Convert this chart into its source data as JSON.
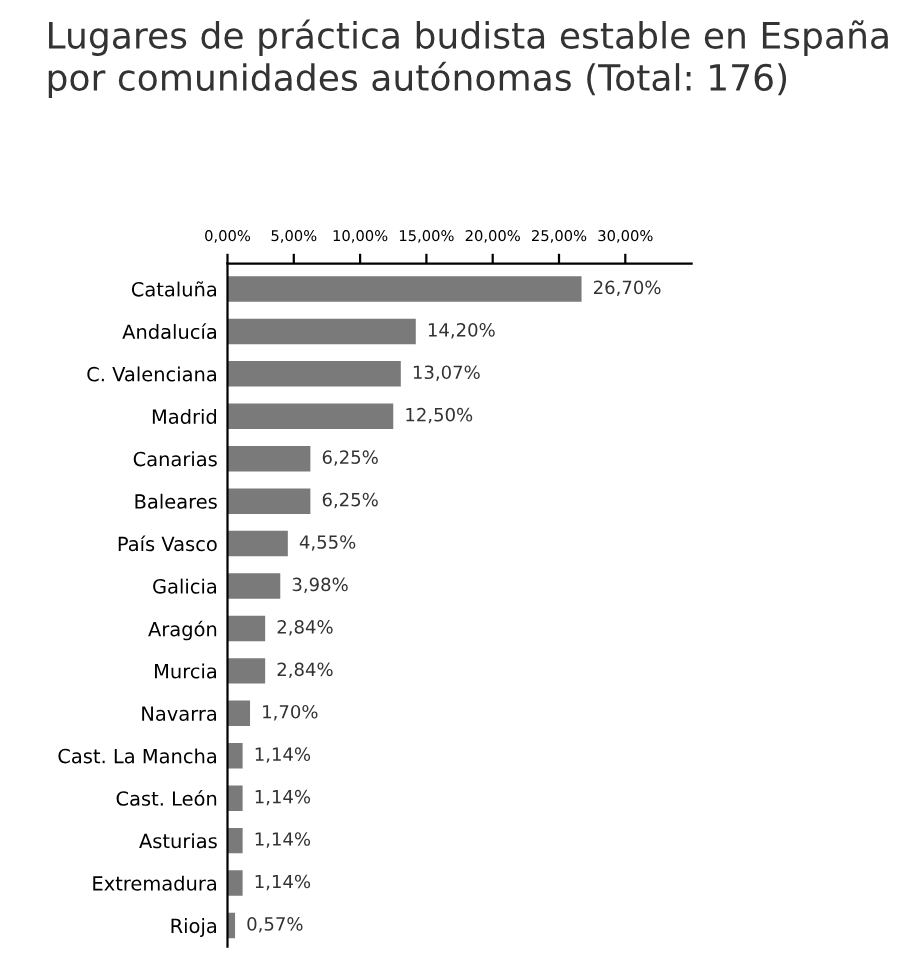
{
  "chart_data": {
    "type": "bar",
    "orientation": "horizontal",
    "title": "Lugares de práctica budista estable en España\npor comunidades autónomas (Total: 176)",
    "categories": [
      "Cataluña",
      "Andalucía",
      "C. Valenciana",
      "Madrid",
      "Canarias",
      "Baleares",
      "País Vasco",
      "Galicia",
      "Aragón",
      "Murcia",
      "Navarra",
      "Cast. La Mancha",
      "Cast. León",
      "Asturias",
      "Extremadura",
      "Rioja"
    ],
    "values": [
      26.7,
      14.2,
      13.07,
      12.5,
      6.25,
      6.25,
      4.55,
      3.98,
      2.84,
      2.84,
      1.7,
      1.14,
      1.14,
      1.14,
      1.14,
      0.57
    ],
    "value_labels": [
      "26,70%",
      "14,20%",
      "13,07%",
      "12,50%",
      "6,25%",
      "6,25%",
      "4,55%",
      "3,98%",
      "2,84%",
      "2,84%",
      "1,70%",
      "1,14%",
      "1,14%",
      "1,14%",
      "1,14%",
      "0,57%"
    ],
    "color": "#7a7a7a",
    "xlim": [
      0,
      35
    ],
    "xticks": [
      {
        "value": 0,
        "label": "0,00%"
      },
      {
        "value": 5,
        "label": "5,00%"
      },
      {
        "value": 10,
        "label": "10,00%"
      },
      {
        "value": 15,
        "label": "15,00%"
      },
      {
        "value": 20,
        "label": "20,00%"
      },
      {
        "value": 25,
        "label": "25,00%"
      },
      {
        "value": 30,
        "label": "30,00%"
      }
    ],
    "grid": false,
    "legend": false
  }
}
